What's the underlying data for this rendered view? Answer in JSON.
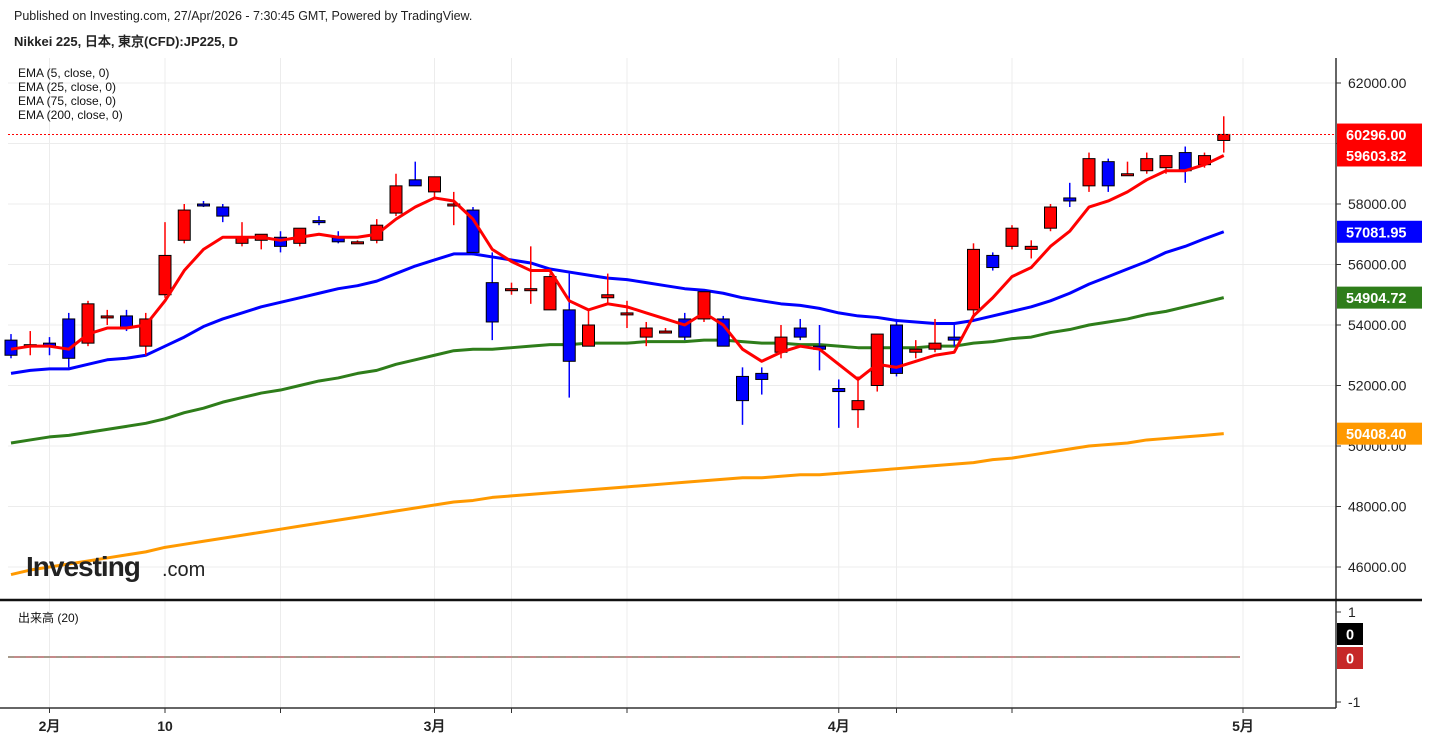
{
  "header": {
    "published": "Published on Investing.com, 27/Apr/2026 - 7:30:45 GMT, Powered by TradingView.",
    "symbol": "Nikkei 225, 日本, 東京(CFD):JP225, D"
  },
  "watermark": {
    "brand": "Investing",
    "suffix": ".com"
  },
  "colors": {
    "up": "#ff0000",
    "down": "#0000ff",
    "ema5": "#ff0000",
    "ema25": "#0000ff",
    "ema75": "#2e7d1a",
    "ema200": "#ff9900",
    "grid": "#ececec"
  },
  "chart_data": {
    "type": "candlestick",
    "title": "Nikkei 225, 日本, 東京(CFD):JP225, D",
    "ylim": [
      44800,
      63000
    ],
    "yticks": [
      46000,
      48000,
      50000,
      52000,
      54000,
      56000,
      58000,
      60000,
      62000
    ],
    "ytick_labels": [
      "46000.00",
      "48000.00",
      "50000.00",
      "52000.00",
      "54000.00",
      "56000.00",
      "58000.00",
      "60000.00",
      "62000.00"
    ],
    "xlabels": [
      {
        "label": "2月",
        "day": 2
      },
      {
        "label": "10",
        "day": 8
      },
      {
        "label": "3月",
        "day": 22
      },
      {
        "label": "4月",
        "day": 43
      },
      {
        "label": "5月",
        "day": 64
      }
    ],
    "x_minor_days": [
      14,
      26,
      32,
      46,
      52
    ],
    "last_price": {
      "label": "60296.00",
      "value": 60296
    },
    "legend": [
      "EMA (5, close, 0)",
      "EMA (25, close, 0)",
      "EMA (75, close, 0)",
      "EMA (200, close, 0)"
    ],
    "ohlc": [
      [
        53500,
        53700,
        52900,
        53000
      ],
      [
        53300,
        53800,
        53000,
        53350
      ],
      [
        53400,
        53600,
        53000,
        53300
      ],
      [
        54200,
        54400,
        52600,
        52900
      ],
      [
        53400,
        54800,
        53300,
        54700
      ],
      [
        54250,
        54500,
        54000,
        54300
      ],
      [
        54300,
        54500,
        53800,
        53900
      ],
      [
        53300,
        54400,
        53000,
        54200
      ],
      [
        55000,
        57400,
        54900,
        56300
      ],
      [
        56800,
        58000,
        56700,
        57800
      ],
      [
        58000,
        58100,
        57900,
        57950
      ],
      [
        57900,
        58000,
        57400,
        57600
      ],
      [
        56700,
        57400,
        56600,
        56900
      ],
      [
        56800,
        57000,
        56500,
        57000
      ],
      [
        56900,
        57100,
        56400,
        56600
      ],
      [
        56700,
        57200,
        56600,
        57200
      ],
      [
        57450,
        57600,
        57300,
        57400
      ],
      [
        56900,
        57100,
        56700,
        56750
      ],
      [
        56700,
        56800,
        56700,
        56750
      ],
      [
        56800,
        57500,
        56700,
        57300
      ],
      [
        57700,
        59000,
        57600,
        58600
      ],
      [
        58800,
        59400,
        58600,
        58600
      ],
      [
        58400,
        58900,
        58200,
        58900
      ],
      [
        58000,
        58400,
        57300,
        58000
      ],
      [
        57800,
        57900,
        56300,
        56400
      ],
      [
        55400,
        56400,
        53500,
        54100
      ],
      [
        55200,
        55400,
        55000,
        55200
      ],
      [
        55200,
        56600,
        54700,
        55200
      ],
      [
        54500,
        55700,
        54500,
        55600
      ],
      [
        54500,
        55700,
        51600,
        52800
      ],
      [
        53300,
        54500,
        53300,
        54000
      ],
      [
        54900,
        55700,
        54700,
        55000
      ],
      [
        54400,
        54800,
        53900,
        54400
      ],
      [
        53600,
        54100,
        53300,
        53900
      ],
      [
        53800,
        53900,
        53800,
        53800
      ],
      [
        54200,
        54400,
        53500,
        53600
      ],
      [
        54200,
        55100,
        54100,
        55100
      ],
      [
        54200,
        54300,
        53300,
        53300
      ],
      [
        52300,
        52600,
        50700,
        51500
      ],
      [
        52400,
        52600,
        51700,
        52200
      ],
      [
        53100,
        54000,
        52900,
        53600
      ],
      [
        53900,
        54200,
        53500,
        53600
      ],
      [
        53300,
        54000,
        52500,
        53200
      ],
      [
        51900,
        52200,
        50600,
        51800
      ],
      [
        51200,
        52300,
        50600,
        51500
      ],
      [
        52000,
        53700,
        51800,
        53700
      ],
      [
        54000,
        54200,
        52300,
        52400
      ],
      [
        53100,
        53500,
        52900,
        53200
      ],
      [
        53200,
        54200,
        53100,
        53400
      ],
      [
        53600,
        54000,
        53300,
        53500
      ],
      [
        54500,
        56700,
        54300,
        56500
      ],
      [
        56300,
        56400,
        55800,
        55900
      ],
      [
        56600,
        57300,
        56500,
        57200
      ],
      [
        56500,
        56800,
        56200,
        56600
      ],
      [
        57200,
        58000,
        57100,
        57900
      ],
      [
        58200,
        58700,
        57900,
        58100
      ],
      [
        58600,
        59700,
        58400,
        59500
      ],
      [
        59400,
        59500,
        58400,
        58600
      ],
      [
        59000,
        59400,
        59000,
        59000
      ],
      [
        59100,
        59700,
        59000,
        59500
      ],
      [
        59200,
        59600,
        59000,
        59600
      ],
      [
        59700,
        59900,
        58700,
        59100
      ],
      [
        59300,
        59700,
        59200,
        59600
      ],
      [
        60100,
        60900,
        59700,
        60300
      ]
    ],
    "series": [
      {
        "name": "EMA (5, close, 0)",
        "label": "59603.82",
        "color": "#ff0000",
        "values": [
          53200,
          53300,
          53300,
          53200,
          53700,
          53900,
          53900,
          54000,
          54800,
          55800,
          56500,
          56900,
          56900,
          56900,
          56800,
          56900,
          57000,
          56900,
          56900,
          57000,
          57500,
          57900,
          58200,
          58100,
          57500,
          56500,
          56100,
          55800,
          55800,
          54800,
          54500,
          54700,
          54600,
          54400,
          54200,
          54000,
          54400,
          54000,
          53200,
          52800,
          53100,
          53300,
          53200,
          52700,
          52200,
          52700,
          52600,
          52800,
          53000,
          53100,
          54300,
          54900,
          55600,
          55900,
          56600,
          57100,
          57900,
          58100,
          58400,
          58800,
          59100,
          59100,
          59300,
          59604
        ]
      },
      {
        "name": "EMA (25, close, 0)",
        "label": "57081.95",
        "color": "#0000ff",
        "values": [
          52400,
          52500,
          52550,
          52550,
          52700,
          52850,
          52900,
          53000,
          53300,
          53600,
          53950,
          54200,
          54400,
          54600,
          54750,
          54900,
          55050,
          55200,
          55300,
          55450,
          55700,
          55950,
          56150,
          56350,
          56350,
          56250,
          56150,
          56050,
          55850,
          55750,
          55650,
          55550,
          55500,
          55400,
          55300,
          55200,
          55150,
          55050,
          54900,
          54800,
          54700,
          54650,
          54550,
          54400,
          54300,
          54250,
          54150,
          54100,
          54050,
          54050,
          54150,
          54300,
          54450,
          54600,
          54800,
          55050,
          55350,
          55600,
          55850,
          56100,
          56400,
          56600,
          56850,
          57082
        ]
      },
      {
        "name": "EMA (75, close, 0)",
        "label": "54904.72",
        "color": "#2e7d1a",
        "values": [
          50100,
          50200,
          50300,
          50350,
          50450,
          50550,
          50650,
          50750,
          50900,
          51100,
          51250,
          51450,
          51600,
          51750,
          51850,
          52000,
          52150,
          52250,
          52400,
          52500,
          52700,
          52850,
          53000,
          53150,
          53200,
          53200,
          53250,
          53300,
          53350,
          53350,
          53400,
          53400,
          53400,
          53450,
          53450,
          53450,
          53500,
          53500,
          53450,
          53400,
          53400,
          53350,
          53350,
          53300,
          53250,
          53250,
          53250,
          53250,
          53300,
          53300,
          53400,
          53450,
          53550,
          53600,
          53750,
          53850,
          54000,
          54100,
          54200,
          54350,
          54450,
          54600,
          54750,
          54905
        ]
      },
      {
        "name": "EMA (200, close, 0)",
        "label": "50408.40",
        "color": "#ff9900",
        "values": [
          45750,
          45900,
          46000,
          46100,
          46200,
          46300,
          46400,
          46500,
          46650,
          46750,
          46850,
          46950,
          47050,
          47150,
          47250,
          47350,
          47450,
          47550,
          47650,
          47750,
          47850,
          47950,
          48050,
          48150,
          48200,
          48300,
          48350,
          48400,
          48450,
          48500,
          48550,
          48600,
          48650,
          48700,
          48750,
          48800,
          48850,
          48900,
          48950,
          48950,
          49000,
          49050,
          49050,
          49100,
          49150,
          49200,
          49250,
          49300,
          49350,
          49400,
          49450,
          49550,
          49600,
          49700,
          49800,
          49900,
          50000,
          50050,
          50100,
          50200,
          50250,
          50300,
          50350,
          50408
        ]
      }
    ],
    "volume": {
      "title": "出来高 (20)",
      "ylim": [
        -1,
        1
      ],
      "yticks": [
        -1,
        1
      ],
      "ytick_labels": [
        "-1",
        "1"
      ],
      "values": [
        0,
        0
      ],
      "labels": [
        "0",
        "0"
      ],
      "label_colors": [
        "#000000",
        "#c62828"
      ]
    }
  }
}
